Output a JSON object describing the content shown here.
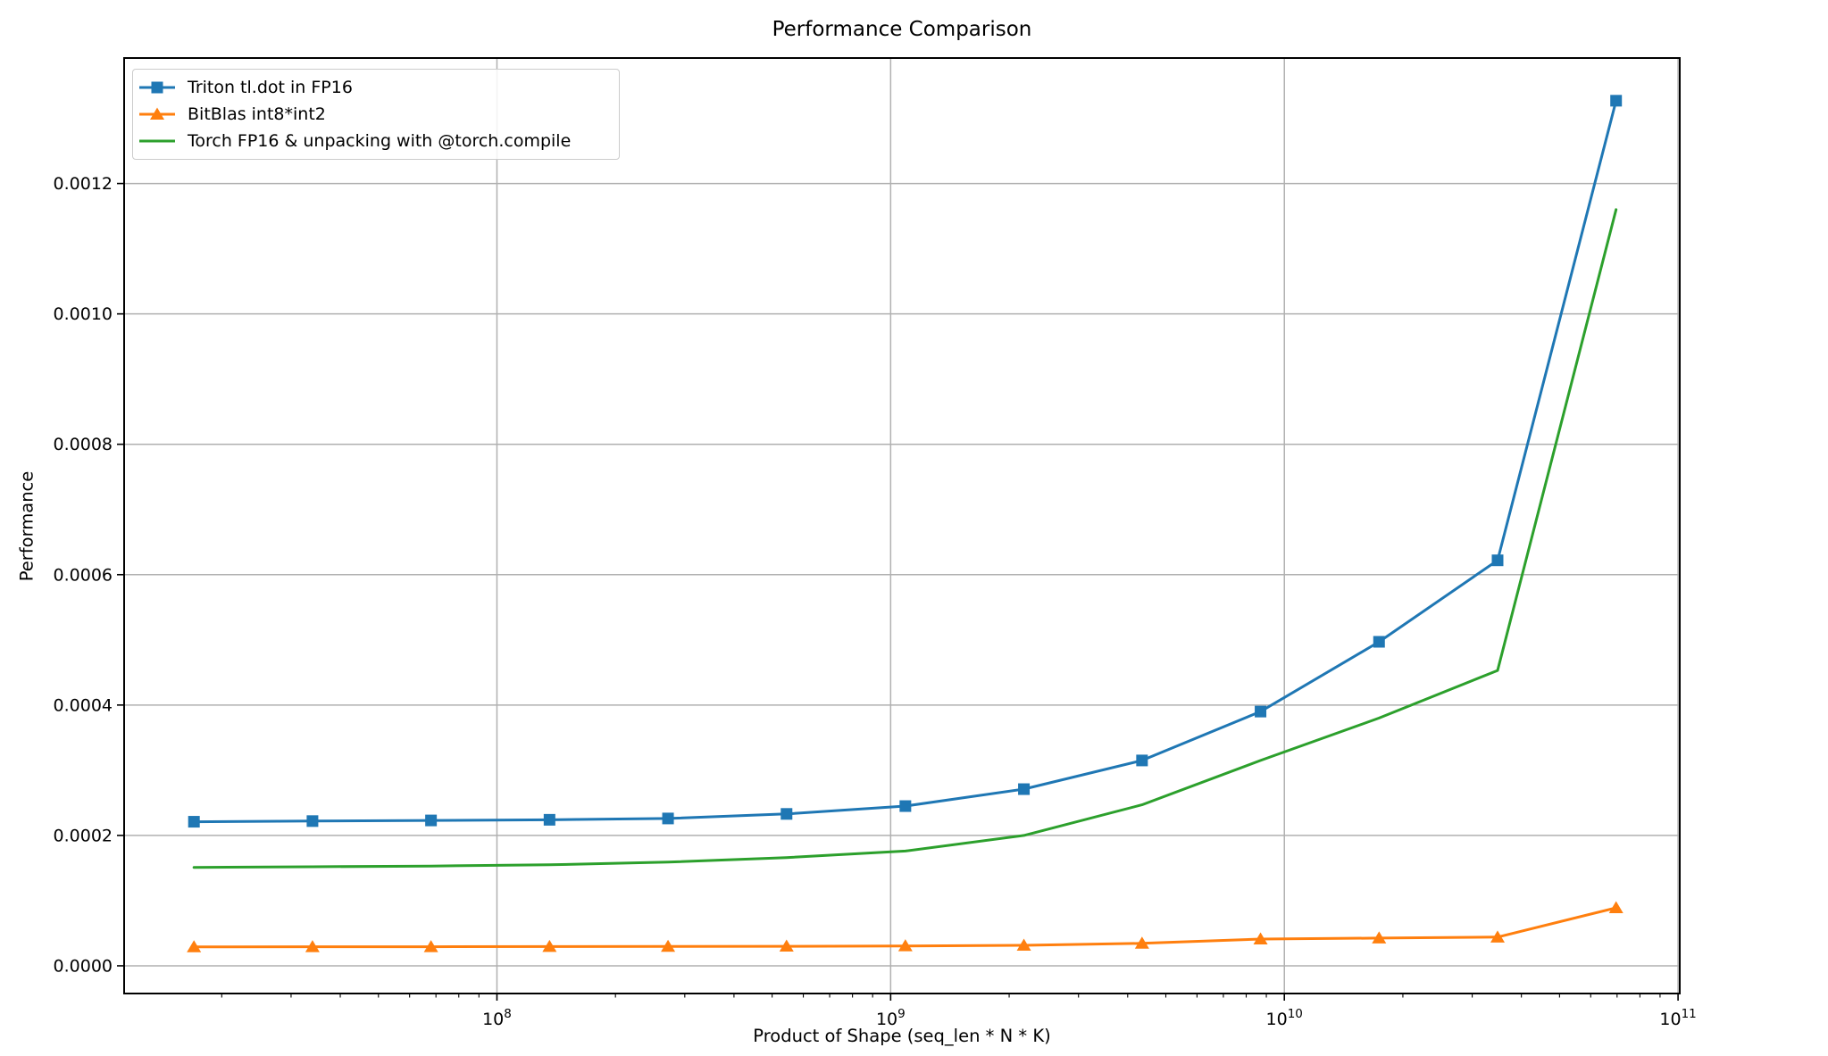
{
  "chart_data": {
    "type": "line",
    "title": "Performance Comparison",
    "xlabel": "Product of Shape (seq_len * N * K)",
    "ylabel": "Performance",
    "x_scale": "log",
    "grid": true,
    "legend_position": "upper left",
    "xlim": [
      11300000,
      101000000000
    ],
    "ylim": [
      -4.25e-05,
      0.0013925
    ],
    "x": [
      17000000,
      34000000,
      68000000,
      136000000,
      272000000,
      544000000,
      1090000000,
      2180000000,
      4350000000,
      8700000000,
      17400000000,
      34800000000,
      69600000000
    ],
    "series": [
      {
        "name": "Triton tl.dot in FP16",
        "slug": "triton-tldot-fp16",
        "color": "#1f77b4",
        "marker": "square",
        "values": [
          0.000221,
          0.000222,
          0.000223,
          0.000224,
          0.000226,
          0.000233,
          0.000245,
          0.000271,
          0.000315,
          0.00039,
          0.000497,
          0.000622,
          0.001327
        ]
      },
      {
        "name": "BitBlas int8*int2",
        "slug": "bitblas-int8-int2",
        "color": "#ff7f0e",
        "marker": "triangle",
        "values": [
          2.9e-05,
          2.92e-05,
          2.93e-05,
          2.95e-05,
          2.98e-05,
          3e-05,
          3.05e-05,
          3.15e-05,
          3.45e-05,
          4.1e-05,
          4.25e-05,
          4.4e-05,
          8.9e-05
        ]
      },
      {
        "name": "Torch FP16 & unpacking with @torch.compile",
        "slug": "torch-fp16-compile",
        "color": "#2ca02c",
        "marker": "none",
        "values": [
          0.000151,
          0.000152,
          0.000153,
          0.000155,
          0.000159,
          0.000166,
          0.000176,
          0.0002,
          0.000247,
          0.000315,
          0.00038,
          0.000453,
          0.00116
        ]
      }
    ],
    "xticks": [
      {
        "value": 100000000,
        "base": "10",
        "exp": "8"
      },
      {
        "value": 1000000000,
        "base": "10",
        "exp": "9"
      },
      {
        "value": 10000000000,
        "base": "10",
        "exp": "10"
      },
      {
        "value": 100000000000,
        "base": "10",
        "exp": "11"
      }
    ],
    "yticks": [
      {
        "value": 0.0,
        "label": "0.0000"
      },
      {
        "value": 0.0002,
        "label": "0.0002"
      },
      {
        "value": 0.0004,
        "label": "0.0004"
      },
      {
        "value": 0.0006,
        "label": "0.0006"
      },
      {
        "value": 0.0008,
        "label": "0.0008"
      },
      {
        "value": 0.001,
        "label": "0.0010"
      },
      {
        "value": 0.0012,
        "label": "0.0012"
      }
    ],
    "colors": {
      "grid": "#b0b0b0",
      "axis": "#000000",
      "text": "#000000",
      "legend_border": "#cccccc"
    }
  }
}
